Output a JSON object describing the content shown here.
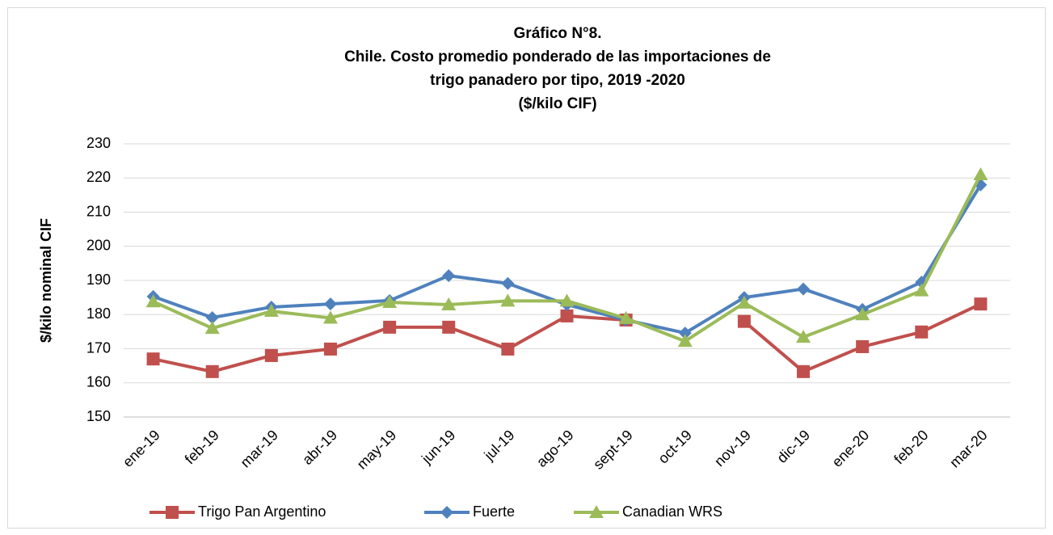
{
  "chart_data": {
    "type": "line",
    "title": [
      "Gráfico N°8.",
      "Chile. Costo promedio ponderado de las importaciones de",
      "trigo panadero por tipo, 2019 -2020",
      "($/kilo CIF)"
    ],
    "y_label": "$/kilo nominal CIF",
    "categories": [
      "ene-19",
      "feb-19",
      "mar-19",
      "abr-19",
      "may-19",
      "jun-19",
      "jul-19",
      "ago-19",
      "sept-19",
      "oct-19",
      "nov-19",
      "dic-19",
      "ene-20",
      "feb-20",
      "mar-20"
    ],
    "series": [
      {
        "name": "Trigo Pan Argentino",
        "color": "#c0504d",
        "marker": "square",
        "values": [
          167.0,
          163.3,
          168.0,
          169.9,
          176.3,
          176.3,
          169.9,
          179.6,
          178.4,
          null,
          178.0,
          163.3,
          170.6,
          174.9,
          183.1
        ]
      },
      {
        "name": "Fuerte",
        "color": "#4f81bd",
        "marker": "diamond",
        "values": [
          185.3,
          179.1,
          182.2,
          183.1,
          184.1,
          191.4,
          189.1,
          182.9,
          178.4,
          174.6,
          185.0,
          187.5,
          181.5,
          189.5,
          218.0
        ]
      },
      {
        "name": "Canadian WRS",
        "color": "#9bbb59",
        "marker": "triangle",
        "values": [
          183.8,
          176.0,
          181.0,
          179.0,
          183.6,
          182.9,
          184.0,
          184.0,
          178.9,
          172.2,
          183.4,
          173.4,
          180.0,
          187.0,
          221.0
        ]
      }
    ],
    "ylim": [
      150,
      230
    ],
    "yticks": [
      150,
      160,
      170,
      180,
      190,
      200,
      210,
      220,
      230
    ],
    "grid": true,
    "legend": "bottom"
  }
}
